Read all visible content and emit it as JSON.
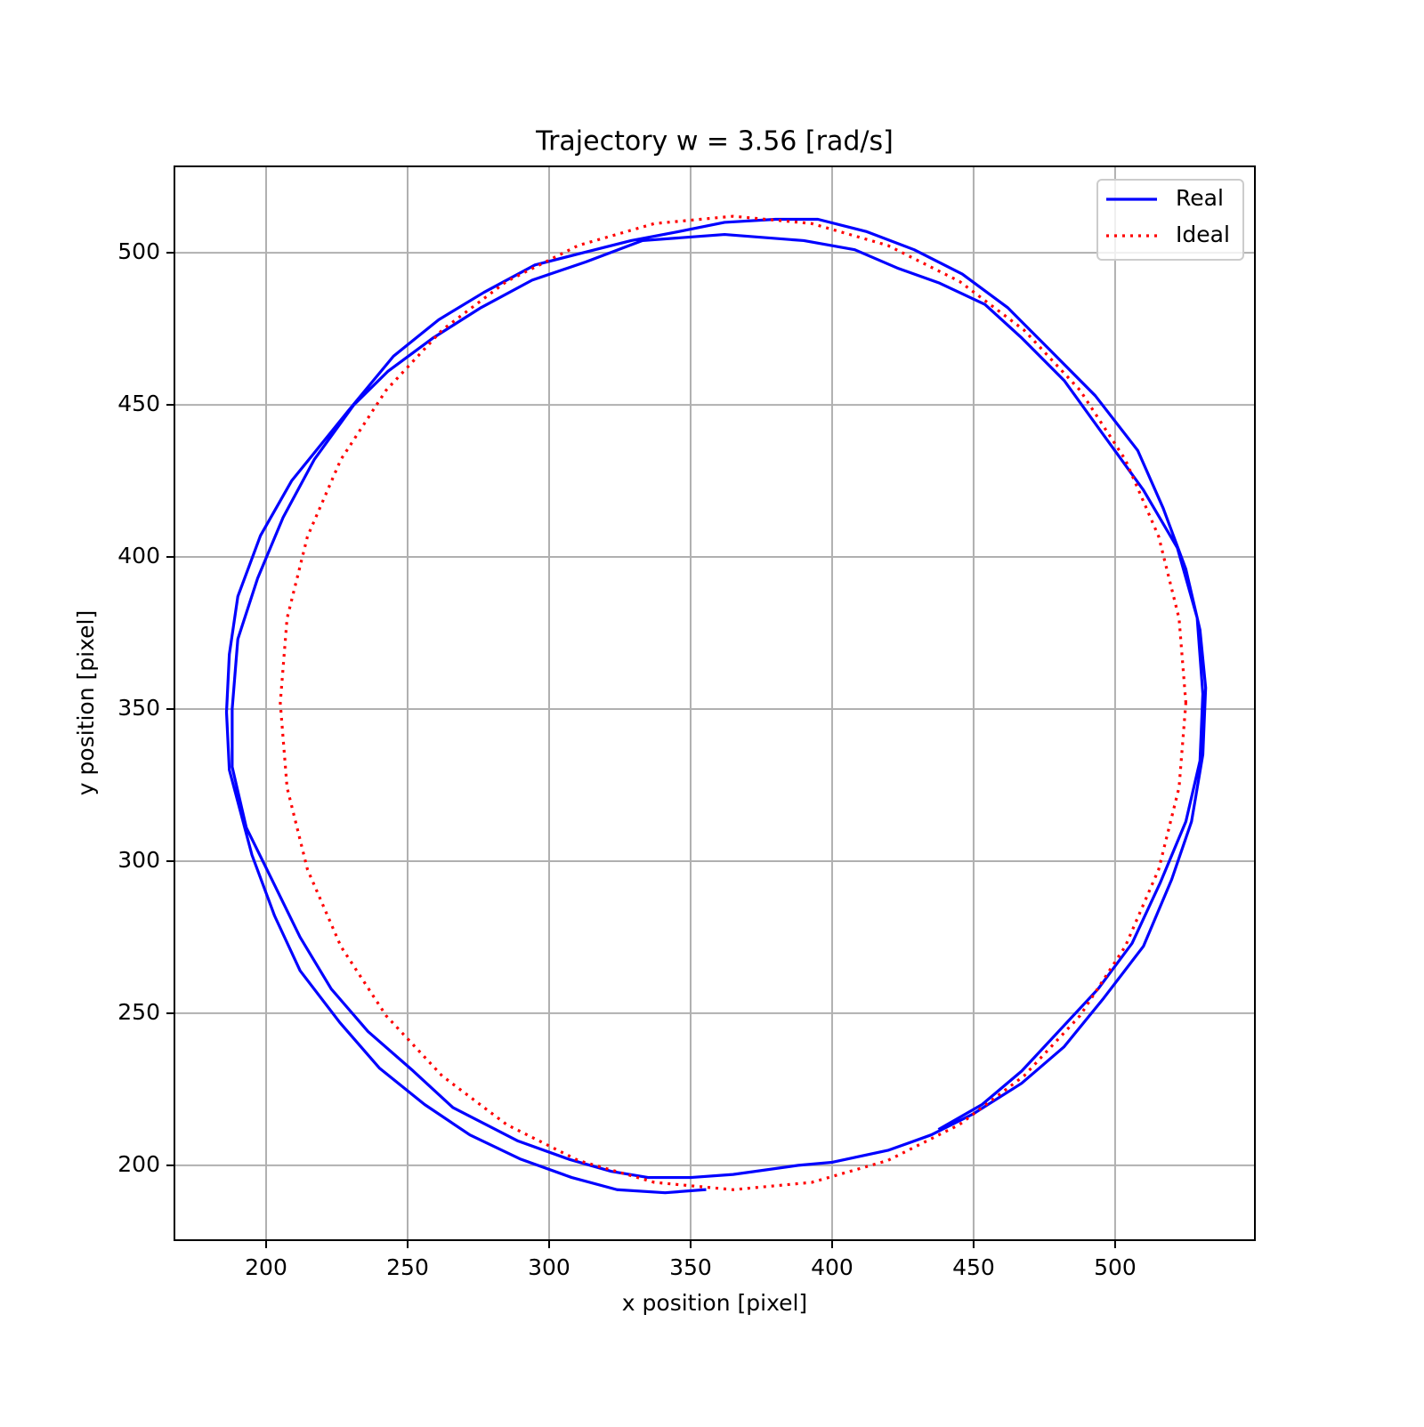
{
  "chart_data": {
    "type": "line",
    "title": "Trajectory w = 3.56 [rad/s]",
    "x_label": "x position [pixel]",
    "y_label": "y position [pixel]",
    "xlim": [
      167.6,
      549.4
    ],
    "ylim": [
      175.4,
      528.4
    ],
    "xticks": [
      200,
      250,
      300,
      350,
      400,
      450,
      500
    ],
    "yticks": [
      200,
      250,
      300,
      350,
      400,
      450,
      500
    ],
    "grid": true,
    "legend": "upper right",
    "series": [
      {
        "name": "Real",
        "color": "#0000ff",
        "style": "solid",
        "x": [
          355,
          341,
          324,
          308,
          290,
          272,
          256,
          240,
          226,
          212,
          203,
          195,
          187,
          186,
          187,
          190,
          198,
          209,
          229,
          245,
          261,
          277,
          295,
          312,
          329,
          346,
          362,
          380,
          395,
          412,
          429,
          446,
          462,
          477,
          493,
          508,
          517,
          525,
          530,
          532,
          531,
          527,
          520,
          510,
          496,
          482,
          467,
          450,
          435,
          420,
          400,
          388,
          365,
          350,
          335,
          322,
          307,
          289,
          266,
          252,
          236,
          223,
          212,
          202,
          193,
          188,
          188,
          190,
          197,
          206,
          217,
          231,
          243,
          259,
          276,
          294,
          313,
          333,
          362,
          390,
          408,
          423,
          438,
          454,
          467,
          482,
          496,
          510,
          522,
          529,
          531,
          530,
          525,
          516,
          506,
          494,
          480,
          467,
          453,
          438
        ],
        "values": [
          192,
          191,
          192,
          196,
          202,
          210,
          220,
          232,
          247,
          264,
          282,
          302,
          330,
          349,
          368,
          387,
          407,
          425,
          448,
          466,
          478,
          487,
          496,
          500,
          504,
          507,
          510,
          511,
          511,
          507,
          501,
          493,
          482,
          468,
          453,
          435,
          416,
          396,
          376,
          357,
          335,
          313,
          294,
          272,
          255,
          239,
          227,
          217,
          210,
          205,
          201,
          200,
          197,
          196,
          196,
          198,
          202,
          208,
          219,
          231,
          244,
          258,
          275,
          294,
          311,
          331,
          350,
          373,
          393,
          413,
          432,
          450,
          461,
          472,
          482,
          491,
          497,
          504,
          506,
          504,
          501,
          495,
          490,
          483,
          472,
          458,
          440,
          422,
          403,
          380,
          355,
          333,
          313,
          293,
          273,
          258,
          244,
          231,
          220,
          212
        ]
      },
      {
        "name": "Ideal",
        "color": "#ff0000",
        "style": "dotted",
        "x": [
          525,
          522.6,
          515.4,
          503.6,
          487.6,
          467.8,
          445,
          419.7,
          392.8,
          365,
          337.2,
          310.3,
          285,
          262.2,
          242.4,
          226.4,
          214.6,
          207.4,
          205,
          207.4,
          214.6,
          226.4,
          242.4,
          262.2,
          285,
          310.3,
          337.2,
          365,
          392.8,
          419.7,
          445,
          467.8,
          487.6,
          503.6,
          515.4,
          522.6,
          525
        ],
        "values": [
          352,
          379.8,
          406.7,
          432,
          454.8,
          474.6,
          490.6,
          502.4,
          509.6,
          512,
          509.6,
          502.4,
          490.6,
          474.6,
          454.8,
          432,
          406.7,
          379.8,
          352,
          324.2,
          297.3,
          272,
          249.2,
          229.4,
          213.4,
          201.6,
          194.4,
          192,
          194.4,
          201.6,
          213.4,
          229.4,
          249.2,
          272,
          297.3,
          324.2,
          352
        ]
      }
    ]
  }
}
